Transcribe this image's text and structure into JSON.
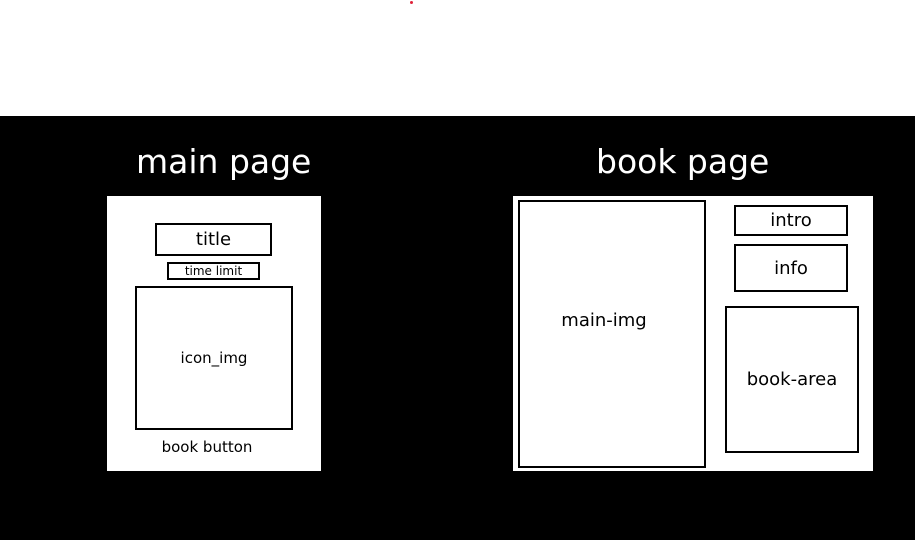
{
  "colors": {
    "background": "#000000",
    "frame": "#ffffff",
    "stroke": "#000000",
    "marker": "#e0233a"
  },
  "main_page": {
    "heading": "main page",
    "title_box": "title",
    "time_limit_box": "time limit",
    "icon_box": "icon_img",
    "book_button_label": "book button"
  },
  "book_page": {
    "heading": "book page",
    "main_img_box": "main-img",
    "intro_box": "intro",
    "info_box": "info",
    "book_area_box": "book-area"
  }
}
